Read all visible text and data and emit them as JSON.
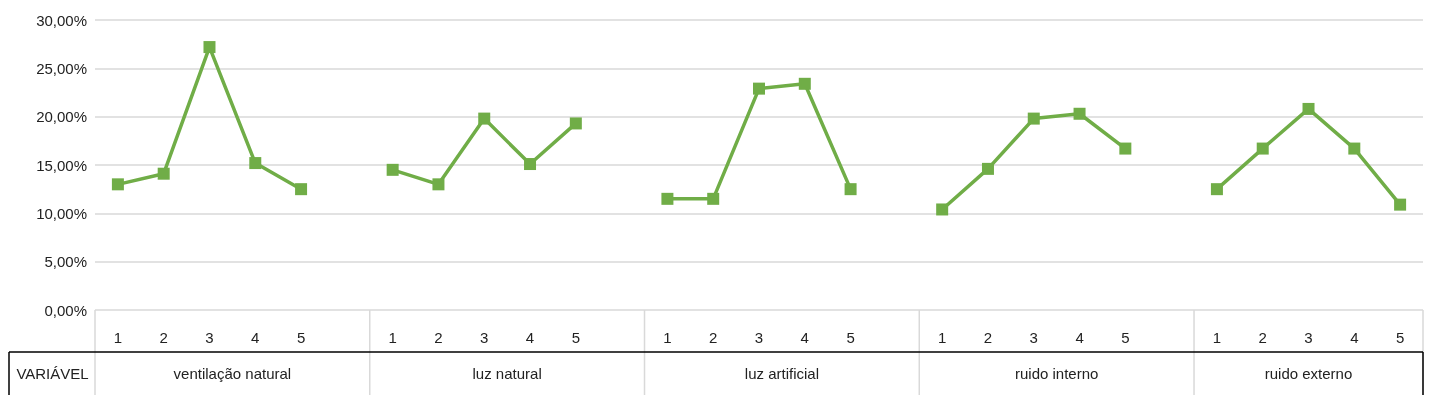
{
  "chart_data": {
    "type": "line",
    "categories": [
      "1",
      "2",
      "3",
      "4",
      "5",
      null,
      "1",
      "2",
      "3",
      "4",
      "5",
      null,
      "1",
      "2",
      "3",
      "4",
      "5",
      null,
      "1",
      "2",
      "3",
      "4",
      "5",
      null,
      "1",
      "2",
      "3",
      "4",
      "5"
    ],
    "series": [
      {
        "color": "#70ad47",
        "values": [
          13.0,
          14.1,
          27.2,
          15.2,
          12.5,
          null,
          14.5,
          13.0,
          19.8,
          15.1,
          19.3,
          null,
          11.5,
          11.5,
          22.9,
          23.4,
          12.5,
          null,
          10.4,
          14.6,
          19.8,
          20.3,
          16.7,
          null,
          12.5,
          16.7,
          20.8,
          16.7,
          10.9
        ]
      }
    ],
    "ylim": [
      0,
      30
    ],
    "yticks": [
      {
        "value": 0,
        "label": "0,00%"
      },
      {
        "value": 5,
        "label": "5,00%"
      },
      {
        "value": 10,
        "label": "10,00%"
      },
      {
        "value": 15,
        "label": "15,00%"
      },
      {
        "value": 20,
        "label": "20,00%"
      },
      {
        "value": 25,
        "label": "25,00%"
      },
      {
        "value": 30,
        "label": "30,00%"
      }
    ],
    "grid": "y",
    "marker": "square",
    "line_style": "solid",
    "annotations": [
      "VARIÁVEL",
      "ventilação natural",
      "luz natural",
      "luz artificial",
      "ruido interno",
      "ruido externo"
    ]
  }
}
